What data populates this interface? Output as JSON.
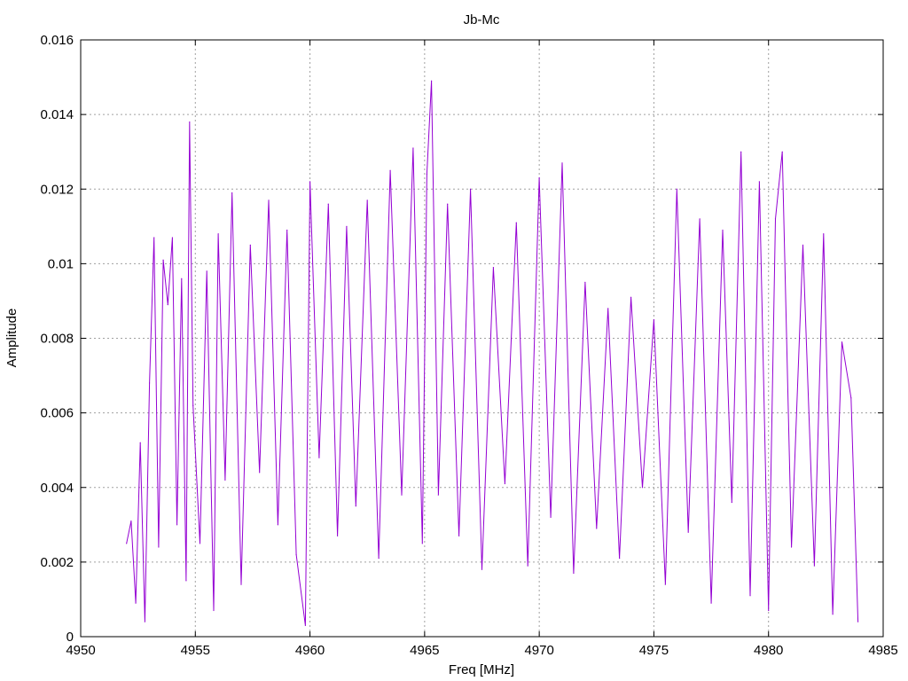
{
  "chart_data": {
    "type": "line",
    "title": "Jb-Mc",
    "xlabel": "Freq [MHz]",
    "ylabel": "Amplitude",
    "xlim": [
      4950,
      4985
    ],
    "ylim": [
      0,
      0.016
    ],
    "xticks": [
      "4950",
      "4955",
      "4960",
      "4965",
      "4970",
      "4975",
      "4980",
      "4985"
    ],
    "yticks": [
      "0",
      "0.002",
      "0.004",
      "0.006",
      "0.008",
      "0.01",
      "0.012",
      "0.014",
      "0.016"
    ],
    "grid": true,
    "series": [
      {
        "color": "#9400d3",
        "x": [
          4952.0,
          4952.2,
          4952.4,
          4952.6,
          4952.8,
          4953.0,
          4953.2,
          4953.4,
          4953.6,
          4953.8,
          4954.0,
          4954.2,
          4954.4,
          4954.6,
          4954.75,
          4954.9,
          4955.2,
          4955.5,
          4955.8,
          4956.0,
          4956.3,
          4956.6,
          4957.0,
          4957.4,
          4957.8,
          4958.2,
          4958.6,
          4959.0,
          4959.4,
          4959.8,
          4960.0,
          4960.4,
          4960.8,
          4961.2,
          4961.6,
          4962.0,
          4962.5,
          4963.0,
          4963.5,
          4964.0,
          4964.5,
          4964.9,
          4965.1,
          4965.3,
          4965.6,
          4966.0,
          4966.5,
          4967.0,
          4967.5,
          4968.0,
          4968.5,
          4969.0,
          4969.5,
          4970.0,
          4970.5,
          4971.0,
          4971.5,
          4972.0,
          4972.5,
          4973.0,
          4973.5,
          4974.0,
          4974.5,
          4975.0,
          4975.5,
          4976.0,
          4976.5,
          4977.0,
          4977.5,
          4978.0,
          4978.4,
          4978.8,
          4979.2,
          4979.6,
          4980.0,
          4980.3,
          4980.6,
          4981.0,
          4981.5,
          4982.0,
          4982.4,
          4982.8,
          4983.2,
          4983.6,
          4983.9
        ],
        "y": [
          0.0025,
          0.0031,
          0.0009,
          0.0052,
          0.0004,
          0.0068,
          0.0107,
          0.0024,
          0.0101,
          0.0089,
          0.0107,
          0.003,
          0.0096,
          0.0015,
          0.0138,
          0.0062,
          0.0025,
          0.0098,
          0.0007,
          0.0108,
          0.0042,
          0.0119,
          0.0014,
          0.0105,
          0.0044,
          0.0117,
          0.003,
          0.0109,
          0.0022,
          0.0003,
          0.0122,
          0.0048,
          0.0116,
          0.0027,
          0.011,
          0.0035,
          0.0117,
          0.0021,
          0.0125,
          0.0038,
          0.0131,
          0.0025,
          0.0124,
          0.0149,
          0.0038,
          0.0116,
          0.0027,
          0.012,
          0.0018,
          0.0099,
          0.0041,
          0.0111,
          0.0019,
          0.0123,
          0.0032,
          0.0127,
          0.0017,
          0.0095,
          0.0029,
          0.0088,
          0.0021,
          0.0091,
          0.004,
          0.0085,
          0.0014,
          0.012,
          0.0028,
          0.0112,
          0.0009,
          0.0109,
          0.0036,
          0.013,
          0.0011,
          0.0122,
          0.0007,
          0.0112,
          0.013,
          0.0024,
          0.0105,
          0.0019,
          0.0108,
          0.0006,
          0.0079,
          0.0064,
          0.0004
        ]
      }
    ]
  }
}
